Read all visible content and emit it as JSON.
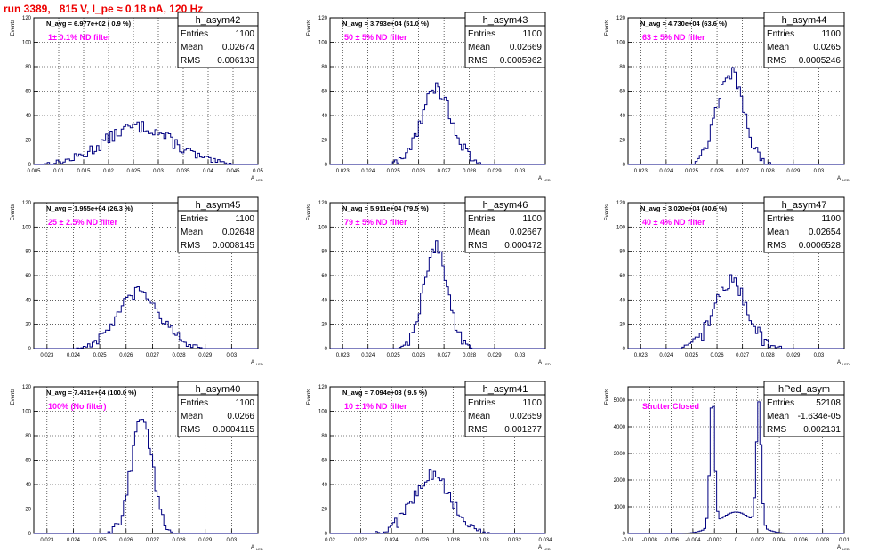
{
  "run_title": "run 3389,   815 V, I_pe ≈ 0.18 nA, 120 Hz",
  "stats_labels": {
    "entries": "Entries",
    "mean": "Mean",
    "rms": "RMS"
  },
  "y_axis_label": "Events",
  "x_axis_label": "A",
  "x_axis_sub": "LED",
  "colors": {
    "histogram": "#000080",
    "annotation": "#ff00ff",
    "title": "#ee0000",
    "grid": "#000000"
  },
  "chart_data": [
    {
      "type": "bar",
      "name": "h_asym42",
      "entries": "1100",
      "mean": "0.02674",
      "rms": "0.006133",
      "navg": "N_avg = 6.977e+02 ( 0.9 %)",
      "filter": "1± 0.1% ND filter",
      "xlim": [
        0.005,
        0.05
      ],
      "ylim": [
        0,
        120
      ],
      "xticks": [
        "0.005",
        "0.01",
        "0.015",
        "0.02",
        "0.025",
        "0.03",
        "0.035",
        "0.04",
        "0.045",
        "0.05"
      ],
      "yticks": [
        "0",
        "20",
        "40",
        "60",
        "80",
        "100",
        "120"
      ],
      "peaks": [
        {
          "x": 0.026,
          "sigma": 0.0068,
          "amp": 31
        }
      ],
      "noise": 5
    },
    {
      "type": "bar",
      "name": "h_asym43",
      "entries": "1100",
      "mean": "0.02669",
      "rms": "0.0005962",
      "navg": "N_avg = 3.793e+04 (51.0 %)",
      "filter": "50 ± 5% ND filter",
      "xlim": [
        0.0225,
        0.031
      ],
      "ylim": [
        0,
        120
      ],
      "xticks": [
        "0.023",
        "0.024",
        "0.025",
        "0.026",
        "0.027",
        "0.028",
        "0.029",
        "0.03"
      ],
      "yticks": [
        "0",
        "20",
        "40",
        "60",
        "80",
        "100",
        "120"
      ],
      "peaks": [
        {
          "x": 0.0267,
          "sigma": 0.0006,
          "amp": 62
        }
      ],
      "noise": 6
    },
    {
      "type": "bar",
      "name": "h_asym44",
      "entries": "1100",
      "mean": "0.0265",
      "rms": "0.0005246",
      "navg": "N_avg = 4.730e+04 (63.6 %)",
      "filter": "63 ± 5% ND filter",
      "xlim": [
        0.0225,
        0.031
      ],
      "ylim": [
        0,
        120
      ],
      "xticks": [
        "0.023",
        "0.024",
        "0.025",
        "0.026",
        "0.027",
        "0.028",
        "0.029",
        "0.03"
      ],
      "yticks": [
        "0",
        "20",
        "40",
        "60",
        "80",
        "100",
        "120"
      ],
      "peaks": [
        {
          "x": 0.0265,
          "sigma": 0.00052,
          "amp": 76
        }
      ],
      "noise": 6
    },
    {
      "type": "bar",
      "name": "h_asym45",
      "entries": "1100",
      "mean": "0.02648",
      "rms": "0.0008145",
      "navg": "N_avg = 1.955e+04 (26.3 %)",
      "filter": "25 ± 2.5% ND filter",
      "xlim": [
        0.0225,
        0.031
      ],
      "ylim": [
        0,
        120
      ],
      "xticks": [
        "0.023",
        "0.024",
        "0.025",
        "0.026",
        "0.027",
        "0.028",
        "0.029",
        "0.03"
      ],
      "yticks": [
        "0",
        "20",
        "40",
        "60",
        "80",
        "100",
        "120"
      ],
      "peaks": [
        {
          "x": 0.0265,
          "sigma": 0.00081,
          "amp": 46
        }
      ],
      "noise": 5
    },
    {
      "type": "bar",
      "name": "h_asym46",
      "entries": "1100",
      "mean": "0.02667",
      "rms": "0.000472",
      "navg": "N_avg = 5.911e+04 (79.5 %)",
      "filter": "79 ± 5% ND filter",
      "xlim": [
        0.0225,
        0.031
      ],
      "ylim": [
        0,
        120
      ],
      "xticks": [
        "0.023",
        "0.024",
        "0.025",
        "0.026",
        "0.027",
        "0.028",
        "0.029",
        "0.03"
      ],
      "yticks": [
        "0",
        "20",
        "40",
        "60",
        "80",
        "100",
        "120"
      ],
      "peaks": [
        {
          "x": 0.02667,
          "sigma": 0.00047,
          "amp": 84
        }
      ],
      "noise": 5
    },
    {
      "type": "bar",
      "name": "h_asym47",
      "entries": "1100",
      "mean": "0.02654",
      "rms": "0.0006528",
      "navg": "N_avg = 3.020e+04 (40.6 %)",
      "filter": "40 ± 4% ND filter",
      "xlim": [
        0.0225,
        0.031
      ],
      "ylim": [
        0,
        120
      ],
      "xticks": [
        "0.023",
        "0.024",
        "0.025",
        "0.026",
        "0.027",
        "0.028",
        "0.029",
        "0.03"
      ],
      "yticks": [
        "0",
        "20",
        "40",
        "60",
        "80",
        "100",
        "120"
      ],
      "peaks": [
        {
          "x": 0.02654,
          "sigma": 0.00065,
          "amp": 55
        }
      ],
      "noise": 6
    },
    {
      "type": "bar",
      "name": "h_asym40",
      "entries": "1100",
      "mean": "0.0266",
      "rms": "0.0004115",
      "navg": "N_avg = 7.431e+04 (100.0 %)",
      "filter": "100% (No filter)",
      "xlim": [
        0.0225,
        0.031
      ],
      "ylim": [
        0,
        120
      ],
      "xticks": [
        "0.023",
        "0.024",
        "0.025",
        "0.026",
        "0.027",
        "0.028",
        "0.029",
        "0.03"
      ],
      "yticks": [
        "0",
        "20",
        "40",
        "60",
        "80",
        "100",
        "120"
      ],
      "peaks": [
        {
          "x": 0.0266,
          "sigma": 0.00041,
          "amp": 92
        }
      ],
      "noise": 6
    },
    {
      "type": "bar",
      "name": "h_asym41",
      "entries": "1100",
      "mean": "0.02659",
      "rms": "0.001277",
      "navg": "N_avg = 7.094e+03 ( 9.5 %)",
      "filter": "10 ± 1% ND filter",
      "xlim": [
        0.02,
        0.034
      ],
      "ylim": [
        0,
        120
      ],
      "xticks": [
        "0.02",
        "0.022",
        "0.024",
        "0.026",
        "0.028",
        "0.03",
        "0.032",
        "0.034"
      ],
      "yticks": [
        "0",
        "20",
        "40",
        "60",
        "80",
        "100",
        "120"
      ],
      "peaks": [
        {
          "x": 0.0266,
          "sigma": 0.00125,
          "amp": 47
        }
      ],
      "noise": 6
    },
    {
      "type": "bar",
      "name": "hPed_asym",
      "entries": "52108",
      "mean": "-1.634e-05",
      "rms": "0.002131",
      "navg": "",
      "filter": "Shutter Closed",
      "xlim": [
        -0.01,
        0.01
      ],
      "ylim": [
        0,
        5500
      ],
      "xticks": [
        "-0.01",
        "-0.008",
        "-0.006",
        "-0.004",
        "-0.002",
        "0",
        "0.002",
        "0.004",
        "0.006",
        "0.008",
        "0.01"
      ],
      "yticks": [
        "0",
        "1000",
        "2000",
        "3000",
        "4000",
        "5000"
      ],
      "peaks": [
        {
          "x": -0.0022,
          "sigma": 0.00022,
          "amp": 4900
        },
        {
          "x": 0.0021,
          "sigma": 0.00022,
          "amp": 4600
        },
        {
          "x": 0.0,
          "sigma": 0.0016,
          "amp": 800
        }
      ],
      "noise": 0
    }
  ]
}
